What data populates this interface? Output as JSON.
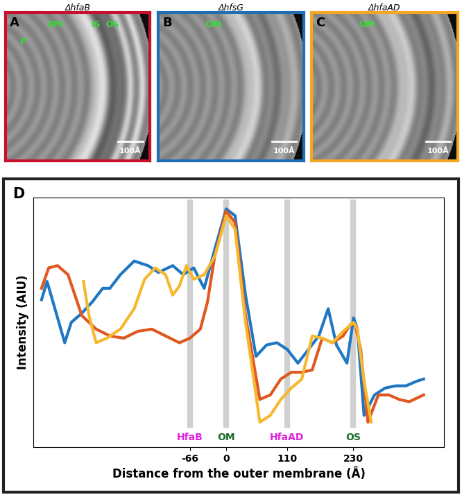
{
  "panels": [
    {
      "label": "A",
      "title": "ΔhfaB",
      "border_color": "#c8102e",
      "annotations": [
        "P",
        "OM",
        "IS",
        "OS"
      ],
      "scale_bar": "100Å"
    },
    {
      "label": "B",
      "title": "ΔhfsG",
      "border_color": "#1f6fb5",
      "annotations": [
        "OM"
      ],
      "scale_bar": "100Å"
    },
    {
      "label": "C",
      "title": "ΔhfaAD",
      "border_color": "#f5a623",
      "annotations": [
        "OM"
      ],
      "scale_bar": "100Å"
    }
  ],
  "chart_panel_label": "D",
  "chart_data": {
    "type": "line",
    "x_label": "Distance from the outer membrane (Å)",
    "y_label": "Intensity (AIU)",
    "xlim": [
      -350,
      395
    ],
    "ylim": [
      -8,
      102
    ],
    "xticks": [
      -66,
      0,
      110,
      230
    ],
    "tick_labels": "x",
    "annotations": [
      {
        "x": -66,
        "text": "HfaB",
        "color": "#e020e0"
      },
      {
        "x": 0,
        "text": "OM",
        "color": "#1a6b2a"
      },
      {
        "x": 110,
        "text": "HfaAD",
        "color": "#e020e0"
      },
      {
        "x": 230,
        "text": "OS",
        "color": "#1a6b2a"
      }
    ],
    "series": [
      {
        "color": "#1f77c4",
        "x": [
          -335,
          -325,
          -306,
          -293,
          -281,
          -262,
          -243,
          -224,
          -211,
          -192,
          -167,
          -142,
          -123,
          -97,
          -78,
          -59,
          -40,
          -21,
          0,
          16,
          35,
          54,
          73,
          92,
          111,
          130,
          149,
          168,
          185,
          200,
          219,
          231,
          238,
          250,
          269,
          288,
          307,
          326,
          345,
          358
        ],
        "values": [
          57,
          65,
          49,
          38,
          47,
          51,
          56,
          62,
          62,
          68,
          74,
          72,
          69,
          72,
          68,
          71,
          62,
          79,
          97,
          94,
          59,
          32,
          37,
          38,
          35,
          29,
          35,
          41,
          53,
          37,
          29,
          49,
          44,
          6,
          15,
          18,
          19,
          19,
          21,
          22
        ]
      },
      {
        "color": "#e0571f",
        "x": [
          -335,
          -322,
          -306,
          -287,
          -262,
          -236,
          -211,
          -186,
          -161,
          -135,
          -110,
          -85,
          -66,
          -47,
          -34,
          -21,
          0,
          16,
          35,
          61,
          80,
          99,
          118,
          137,
          156,
          174,
          193,
          212,
          225,
          234,
          244,
          257,
          276,
          295,
          314,
          332,
          358
        ],
        "values": [
          62,
          71,
          72,
          68,
          50,
          44,
          41,
          40,
          43,
          44,
          41,
          38,
          40,
          44,
          56,
          76,
          96,
          91,
          50,
          13,
          15,
          22,
          25,
          25,
          26,
          40,
          38,
          41,
          46,
          46,
          35,
          3,
          15,
          15,
          13,
          12,
          15
        ]
      },
      {
        "color": "#f5b82e",
        "x": [
          -259,
          -249,
          -236,
          -217,
          -192,
          -167,
          -148,
          -129,
          -110,
          -97,
          -85,
          -72,
          -59,
          -40,
          -21,
          0,
          16,
          35,
          61,
          80,
          99,
          118,
          137,
          156,
          174,
          193,
          212,
          231,
          238,
          250,
          263
        ],
        "values": [
          65,
          50,
          38,
          40,
          44,
          53,
          66,
          71,
          68,
          59,
          63,
          72,
          66,
          68,
          76,
          94,
          88,
          47,
          3,
          6,
          13,
          18,
          22,
          41,
          40,
          38,
          43,
          47,
          44,
          21,
          3
        ]
      }
    ]
  }
}
